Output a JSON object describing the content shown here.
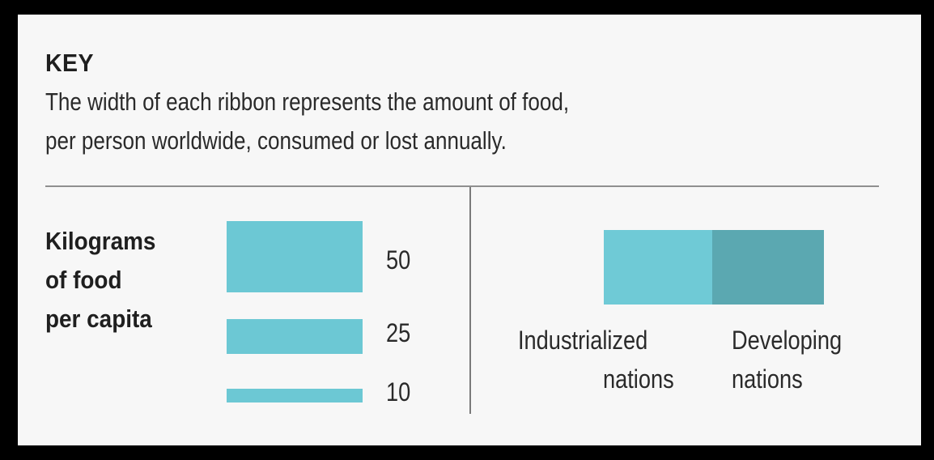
{
  "key": {
    "title": "KEY",
    "description_lines": [
      "The width of each ribbon represents the amount of food,",
      "per person worldwide, consumed or lost annually."
    ]
  },
  "scale": {
    "label_lines": [
      "Kilograms",
      "of food",
      "per capita"
    ],
    "items": [
      {
        "value": 50,
        "label": "50"
      },
      {
        "value": 25,
        "label": "25"
      },
      {
        "value": 10,
        "label": "10"
      }
    ],
    "ribbon_color": "#6cc8d4"
  },
  "legend": {
    "industrialized": {
      "label_lines": [
        "Industrialized",
        "nations"
      ],
      "color": "#6fcad6"
    },
    "developing": {
      "label_lines": [
        "Developing",
        "nations"
      ],
      "color": "#5ba8b1"
    }
  }
}
